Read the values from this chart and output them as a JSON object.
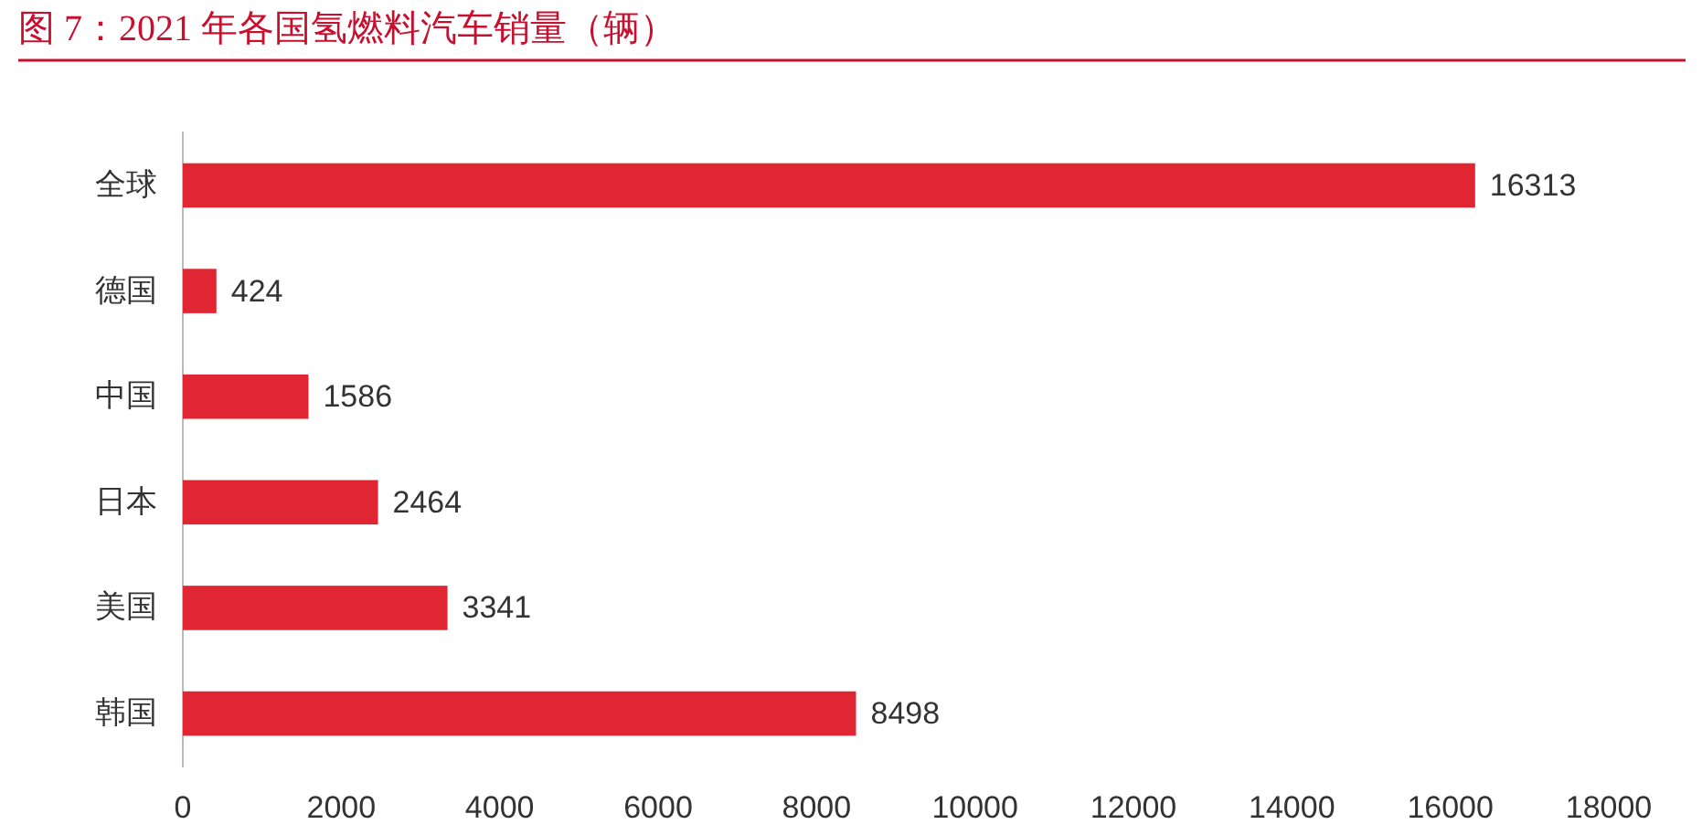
{
  "chart_data": {
    "type": "bar",
    "orientation": "horizontal",
    "title": "图 7：2021 年各国氢燃料汽车销量（辆）",
    "categories": [
      "全球",
      "德国",
      "中国",
      "日本",
      "美国",
      "韩国"
    ],
    "values": [
      16313,
      424,
      1586,
      2464,
      3341,
      8498
    ],
    "color": "#e02533",
    "xlim": [
      0,
      18000
    ],
    "xticks": [
      0,
      2000,
      4000,
      6000,
      8000,
      10000,
      12000,
      14000,
      16000,
      18000
    ],
    "data_labels": true
  }
}
